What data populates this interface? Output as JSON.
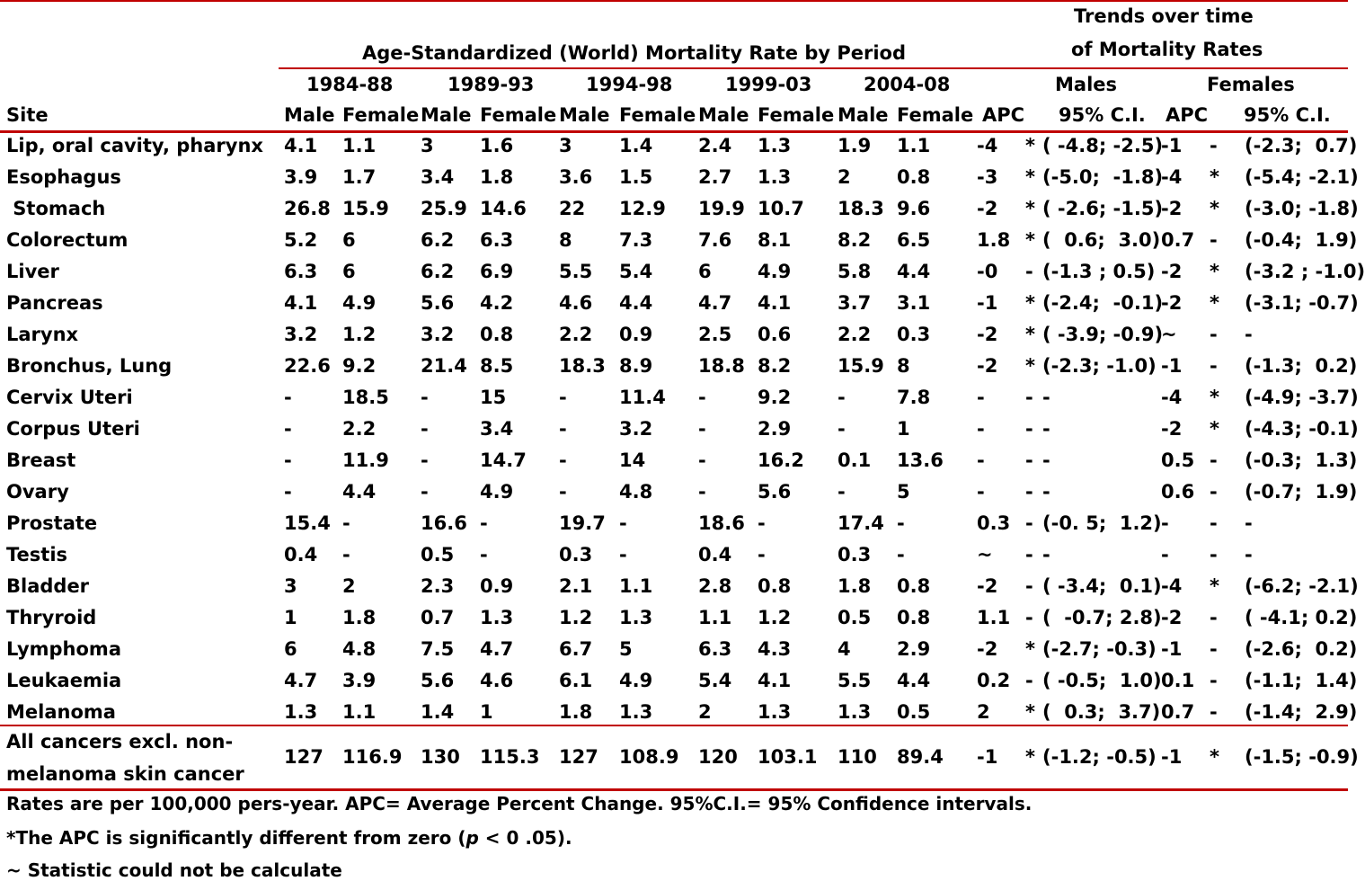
{
  "header": {
    "group_title": "Age-Standardized (World) Mortality Rate by Period",
    "trends_title_line1": "Trends over time",
    "trends_title_line2": "of Mortality Rates",
    "periods": [
      "1984-88",
      "1989-93",
      "1994-98",
      "1999-03",
      "2004-08"
    ],
    "trend_groups": [
      "Males",
      "Females"
    ],
    "site_label": "Site",
    "sub_labels": [
      "Male",
      "Female",
      "Male",
      "Female",
      "Male",
      "Female",
      "Male",
      "Female",
      "Male",
      "Female",
      "APC",
      "95% C.I.",
      "APC",
      "95% C.I."
    ]
  },
  "rows": [
    {
      "site": "Lip, oral cavity, pharynx",
      "v": [
        "4.1",
        "1.1",
        "3",
        "1.6",
        "3",
        "1.4",
        "2.4",
        "1.3",
        "1.9",
        "1.1"
      ],
      "m_apc": "-4",
      "m_sig": "*",
      "m_ci": "( -4.8; -2.5)",
      "f_apc": "-1",
      "f_sig": "-",
      "f_ci": "(-2.3;  0.7)"
    },
    {
      "site": "Esophagus",
      "v": [
        "3.9",
        "1.7",
        "3.4",
        "1.8",
        "3.6",
        "1.5",
        "2.7",
        "1.3",
        "2",
        "0.8"
      ],
      "m_apc": "-3",
      "m_sig": "*",
      "m_ci": "(-5.0;  -1.8)",
      "f_apc": "-4",
      "f_sig": "*",
      "f_ci": "(-5.4; -2.1)"
    },
    {
      "site": " Stomach",
      "v": [
        "26.8",
        "15.9",
        "25.9",
        "14.6",
        "22",
        "12.9",
        "19.9",
        "10.7",
        "18.3",
        "9.6"
      ],
      "m_apc": "-2",
      "m_sig": "*",
      "m_ci": "( -2.6; -1.5)",
      "f_apc": "-2",
      "f_sig": "*",
      "f_ci": "(-3.0; -1.8)"
    },
    {
      "site": "Colorectum",
      "v": [
        "5.2",
        "6",
        "6.2",
        "6.3",
        "8",
        "7.3",
        "7.6",
        "8.1",
        "8.2",
        "6.5"
      ],
      "m_apc": "1.8",
      "m_sig": "*",
      "m_ci": "(  0.6;  3.0)",
      "f_apc": "0.7",
      "f_sig": "-",
      "f_ci": "(-0.4;  1.9)"
    },
    {
      "site": "Liver",
      "v": [
        "6.3",
        "6",
        "6.2",
        "6.9",
        "5.5",
        "5.4",
        "6",
        "4.9",
        "5.8",
        "4.4"
      ],
      "m_apc": "-0",
      "m_sig": "-",
      "m_ci": "(-1.3 ; 0.5)",
      "f_apc": "-2",
      "f_sig": "*",
      "f_ci": "(-3.2 ; -1.0)"
    },
    {
      "site": "Pancreas",
      "v": [
        "4.1",
        "4.9",
        "5.6",
        "4.2",
        "4.6",
        "4.4",
        "4.7",
        "4.1",
        "3.7",
        "3.1"
      ],
      "m_apc": "-1",
      "m_sig": "*",
      "m_ci": "(-2.4;  -0.1)",
      "f_apc": "-2",
      "f_sig": "*",
      "f_ci": "(-3.1; -0.7)"
    },
    {
      "site": "Larynx",
      "v": [
        "3.2",
        "1.2",
        "3.2",
        "0.8",
        "2.2",
        "0.9",
        "2.5",
        "0.6",
        "2.2",
        "0.3"
      ],
      "m_apc": "-2",
      "m_sig": "*",
      "m_ci": "( -3.9; -0.9)",
      "f_apc": "~",
      "f_sig": "-",
      "f_ci": "-"
    },
    {
      "site": "Bronchus, Lung",
      "v": [
        "22.6",
        "9.2",
        "21.4",
        "8.5",
        "18.3",
        "8.9",
        "18.8",
        "8.2",
        "15.9",
        "8"
      ],
      "m_apc": "-2",
      "m_sig": "*",
      "m_ci": "(-2.3; -1.0)",
      "f_apc": "-1",
      "f_sig": "-",
      "f_ci": "(-1.3;  0.2)"
    },
    {
      "site": "Cervix Uteri",
      "v": [
        "-",
        "18.5",
        "-",
        "15",
        "-",
        "11.4",
        "-",
        "9.2",
        "-",
        "7.8"
      ],
      "m_apc": "-",
      "m_sig": "-",
      "m_ci": "-",
      "f_apc": "-4",
      "f_sig": "*",
      "f_ci": "(-4.9; -3.7)"
    },
    {
      "site": "Corpus Uteri",
      "v": [
        "-",
        "2.2",
        "-",
        "3.4",
        "-",
        "3.2",
        "-",
        "2.9",
        "-",
        "1"
      ],
      "m_apc": "-",
      "m_sig": "-",
      "m_ci": "-",
      "f_apc": "-2",
      "f_sig": "*",
      "f_ci": "(-4.3; -0.1)"
    },
    {
      "site": "Breast",
      "v": [
        "-",
        "11.9",
        "-",
        "14.7",
        "-",
        "14",
        "-",
        "16.2",
        "0.1",
        "13.6"
      ],
      "m_apc": "-",
      "m_sig": "-",
      "m_ci": "-",
      "f_apc": "0.5",
      "f_sig": "-",
      "f_ci": "(-0.3;  1.3)"
    },
    {
      "site": "Ovary",
      "v": [
        "-",
        "4.4",
        "-",
        "4.9",
        "-",
        "4.8",
        "-",
        "5.6",
        "-",
        "5"
      ],
      "m_apc": "-",
      "m_sig": "-",
      "m_ci": "-",
      "f_apc": "0.6",
      "f_sig": "-",
      "f_ci": "(-0.7;  1.9)"
    },
    {
      "site": "Prostate",
      "v": [
        "15.4",
        "-",
        "16.6",
        "-",
        "19.7",
        "-",
        "18.6",
        "-",
        "17.4",
        "-"
      ],
      "m_apc": "0.3",
      "m_sig": "-",
      "m_ci": "(-0. 5;  1.2)",
      "f_apc": "-",
      "f_sig": "-",
      "f_ci": "-"
    },
    {
      "site": "Testis",
      "v": [
        "0.4",
        "-",
        "0.5",
        "-",
        "0.3",
        "-",
        "0.4",
        "-",
        "0.3",
        "-"
      ],
      "m_apc": "~",
      "m_sig": "-",
      "m_ci": "-",
      "f_apc": "-",
      "f_sig": "-",
      "f_ci": "-"
    },
    {
      "site": "Bladder",
      "v": [
        "3",
        "2",
        "2.3",
        "0.9",
        "2.1",
        "1.1",
        "2.8",
        "0.8",
        "1.8",
        "0.8"
      ],
      "m_apc": "-2",
      "m_sig": "-",
      "m_ci": "( -3.4;  0.1)",
      "f_apc": "-4",
      "f_sig": "*",
      "f_ci": "(-6.2; -2.1)"
    },
    {
      "site": "Thryroid",
      "v": [
        "1",
        "1.8",
        "0.7",
        "1.3",
        "1.2",
        "1.3",
        "1.1",
        "1.2",
        "0.5",
        "0.8"
      ],
      "m_apc": "1.1",
      "m_sig": "-",
      "m_ci": "(  -0.7; 2.8)",
      "f_apc": "-2",
      "f_sig": "-",
      "f_ci": "( -4.1; 0.2)"
    },
    {
      "site": "Lymphoma",
      "v": [
        "6",
        "4.8",
        "7.5",
        "4.7",
        "6.7",
        "5",
        "6.3",
        "4.3",
        "4",
        "2.9"
      ],
      "m_apc": "-2",
      "m_sig": "*",
      "m_ci": "(-2.7; -0.3)",
      "f_apc": "-1",
      "f_sig": "-",
      "f_ci": "(-2.6;  0.2)"
    },
    {
      "site": "Leukaemia",
      "v": [
        "4.7",
        "3.9",
        "5.6",
        "4.6",
        "6.1",
        "4.9",
        "5.4",
        "4.1",
        "5.5",
        "4.4"
      ],
      "m_apc": "0.2",
      "m_sig": "-",
      "m_ci": "( -0.5;  1.0)",
      "f_apc": "0.1",
      "f_sig": "-",
      "f_ci": "(-1.1;  1.4)"
    },
    {
      "site": "Melanoma",
      "v": [
        "1.3",
        "1.1",
        "1.4",
        "1",
        "1.8",
        "1.3",
        "2",
        "1.3",
        "1.3",
        "0.5"
      ],
      "m_apc": "2",
      "m_sig": "*",
      "m_ci": "(  0.3;  3.7)",
      "f_apc": "0.7",
      "f_sig": "-",
      "f_ci": "(-1.4;  2.9)"
    }
  ],
  "total": {
    "site_line1": "All cancers excl. non-",
    "site_line2": "melanoma skin cancer",
    "v": [
      "127",
      "116.9",
      "130",
      "115.3",
      "127",
      "108.9",
      "120",
      "103.1",
      "110",
      "89.4"
    ],
    "m_apc": "-1",
    "m_sig": "*",
    "m_ci": "(-1.2; -0.5)",
    "f_apc": "-1",
    "f_sig": "*",
    "f_ci": "(-1.5; -0.9)"
  },
  "footnotes": [
    "Rates are per 100,000 pers-year.  APC= Average Percent Change.  95%C.I.=  95% Confidence intervals.",
    "*The APC is significantly different from zero (",
    "p",
    " < 0 .05).",
    "~ Statistic could not be calculate"
  ],
  "colors": {
    "rule": "#c00000",
    "text": "#000000"
  }
}
